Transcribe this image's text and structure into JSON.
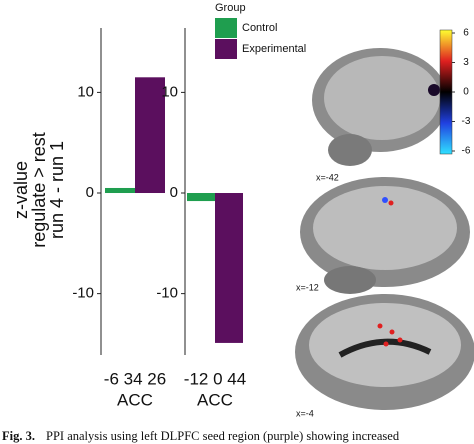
{
  "chart_data": [
    {
      "type": "bar",
      "ylabel": [
        "z-value",
        "regulate > rest",
        "run 4 - run 1"
      ],
      "legend_title": "Group",
      "categories": [
        "-6 34 26"
      ],
      "xlabel": "ACC",
      "series": [
        {
          "name": "Control",
          "color": "#1f9e4f",
          "values": [
            0.5
          ]
        },
        {
          "name": "Experimental",
          "color": "#5b0f5e",
          "values": [
            11.5
          ]
        }
      ],
      "ylim": [
        -16.1,
        16.4
      ],
      "yticks": [
        -10,
        0,
        10
      ]
    },
    {
      "type": "bar",
      "categories": [
        "-12 0 44"
      ],
      "xlabel": "ACC",
      "series": [
        {
          "color": "#1f9e4f",
          "values": [
            -0.8
          ]
        },
        {
          "color": "#5b0f5e",
          "values": [
            -14.9
          ]
        }
      ],
      "ylim": [
        -16.1,
        16.4
      ],
      "yticks": [
        -10,
        0,
        10
      ]
    }
  ],
  "colorbar": {
    "ticks": [
      6,
      3,
      0,
      -3,
      -6
    ]
  },
  "panels": [
    {
      "label": "x=-42"
    },
    {
      "label": "x=-12"
    },
    {
      "label": "x=-4"
    }
  ],
  "caption": {
    "label": "Fig. 3.",
    "text": "PPI analysis using left DLPFC seed region (purple) showing increased"
  }
}
